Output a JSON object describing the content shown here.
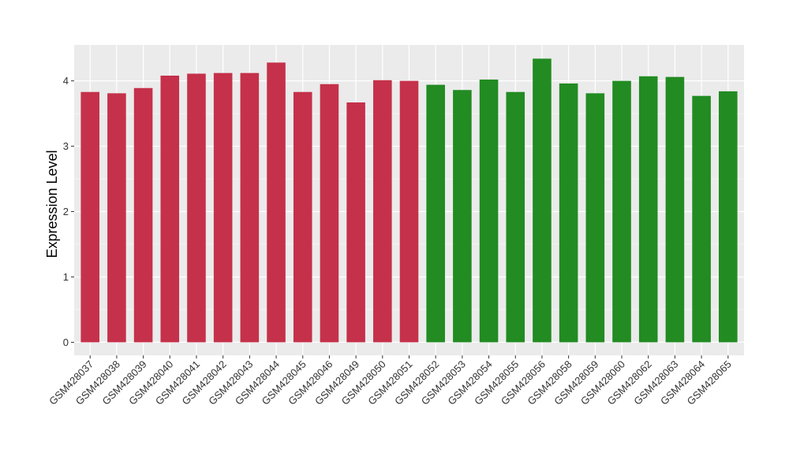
{
  "chart_data": {
    "type": "bar",
    "title": "",
    "xlabel": "",
    "ylabel": "Expression Level",
    "ylim": [
      -0.2,
      4.55
    ],
    "yticks": [
      0,
      1,
      2,
      3,
      4
    ],
    "grid": true,
    "legend": "none",
    "categories": [
      "GSM428037",
      "GSM428038",
      "GSM428039",
      "GSM428040",
      "GSM428041",
      "GSM428042",
      "GSM428043",
      "GSM428044",
      "GSM428045",
      "GSM428046",
      "GSM428049",
      "GSM428050",
      "GSM428051",
      "GSM428052",
      "GSM428053",
      "GSM428054",
      "GSM428055",
      "GSM428056",
      "GSM428058",
      "GSM428059",
      "GSM428060",
      "GSM428062",
      "GSM428063",
      "GSM428064",
      "GSM428065"
    ],
    "values": [
      3.83,
      3.81,
      3.89,
      4.08,
      4.11,
      4.12,
      4.12,
      4.28,
      3.83,
      3.95,
      3.67,
      4.01,
      4.0,
      3.94,
      3.86,
      4.02,
      3.83,
      4.34,
      3.96,
      3.81,
      4.0,
      4.07,
      4.06,
      3.77,
      3.84
    ],
    "groups": [
      "a",
      "a",
      "a",
      "a",
      "a",
      "a",
      "a",
      "a",
      "a",
      "a",
      "a",
      "a",
      "a",
      "b",
      "b",
      "b",
      "b",
      "b",
      "b",
      "b",
      "b",
      "b",
      "b",
      "b",
      "b"
    ],
    "colors": {
      "a": "#c5314a",
      "b": "#228b22",
      "panel": "#ebebeb",
      "grid": "#ffffff"
    }
  }
}
